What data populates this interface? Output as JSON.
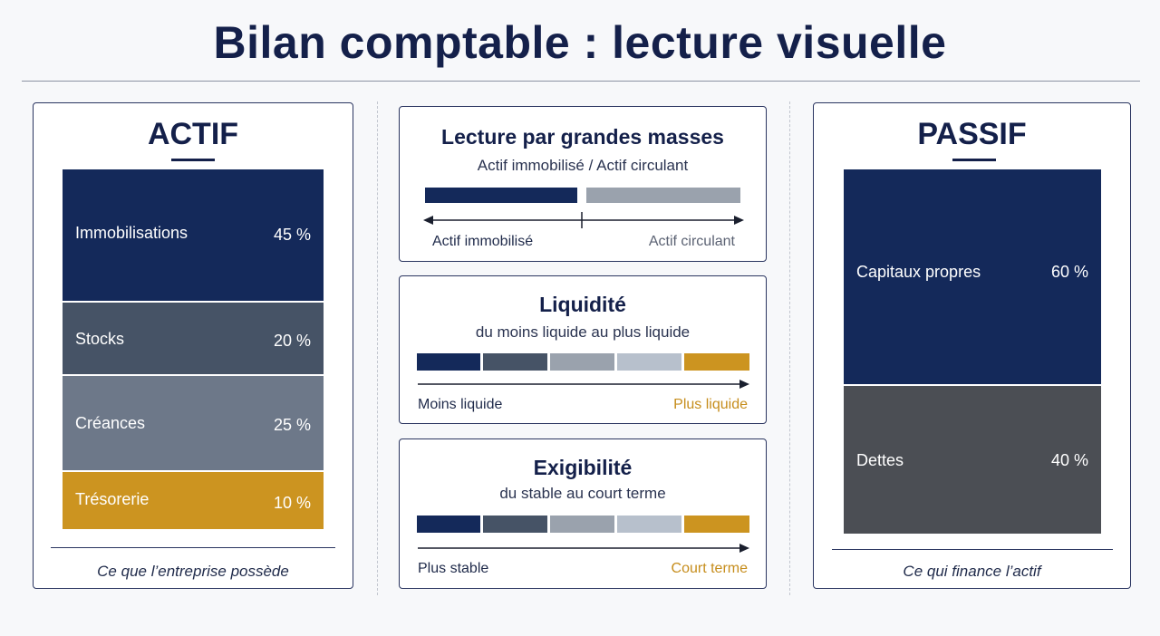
{
  "title": "Bilan comptable : lecture visuelle",
  "colors": {
    "navy": "#14295a",
    "slate": "#465366",
    "steel": "#6d7889",
    "gold": "#cc9420",
    "darkgrey": "#4b4e54",
    "lightgrey": "#9aa2ad",
    "pale": "#b7c0cc"
  },
  "actif": {
    "heading": "ACTIF",
    "caption": "Ce que l’entreprise possède",
    "items": [
      {
        "label": "Immobilisations",
        "value": "45 %",
        "percent": 45
      },
      {
        "label": "Stocks",
        "value": "20 %",
        "percent": 20
      },
      {
        "label": "Créances",
        "value": "25 %",
        "percent": 25
      },
      {
        "label": "Trésorerie",
        "value": "10 %",
        "percent": 10
      }
    ]
  },
  "passif": {
    "heading": "PASSIF",
    "caption": "Ce qui finance l’actif",
    "items": [
      {
        "label": "Capitaux propres",
        "value": "60 %",
        "percent": 60
      },
      {
        "label": "Dettes",
        "value": "40 %",
        "percent": 40
      }
    ]
  },
  "masses": {
    "title": "Lecture par grandes masses",
    "subtitle": "Actif immobilisé / Actif circulant",
    "left_label": "Actif immobilisé",
    "right_label": "Actif circulant"
  },
  "liquidite": {
    "title": "Liquidité",
    "subtitle": "du moins liquide au plus liquide",
    "left_label": "Moins liquide",
    "right_label": "Plus liquide"
  },
  "exigibilite": {
    "title": "Exigibilité",
    "subtitle": "du stable au court terme",
    "left_label": "Plus stable",
    "right_label": "Court terme"
  }
}
